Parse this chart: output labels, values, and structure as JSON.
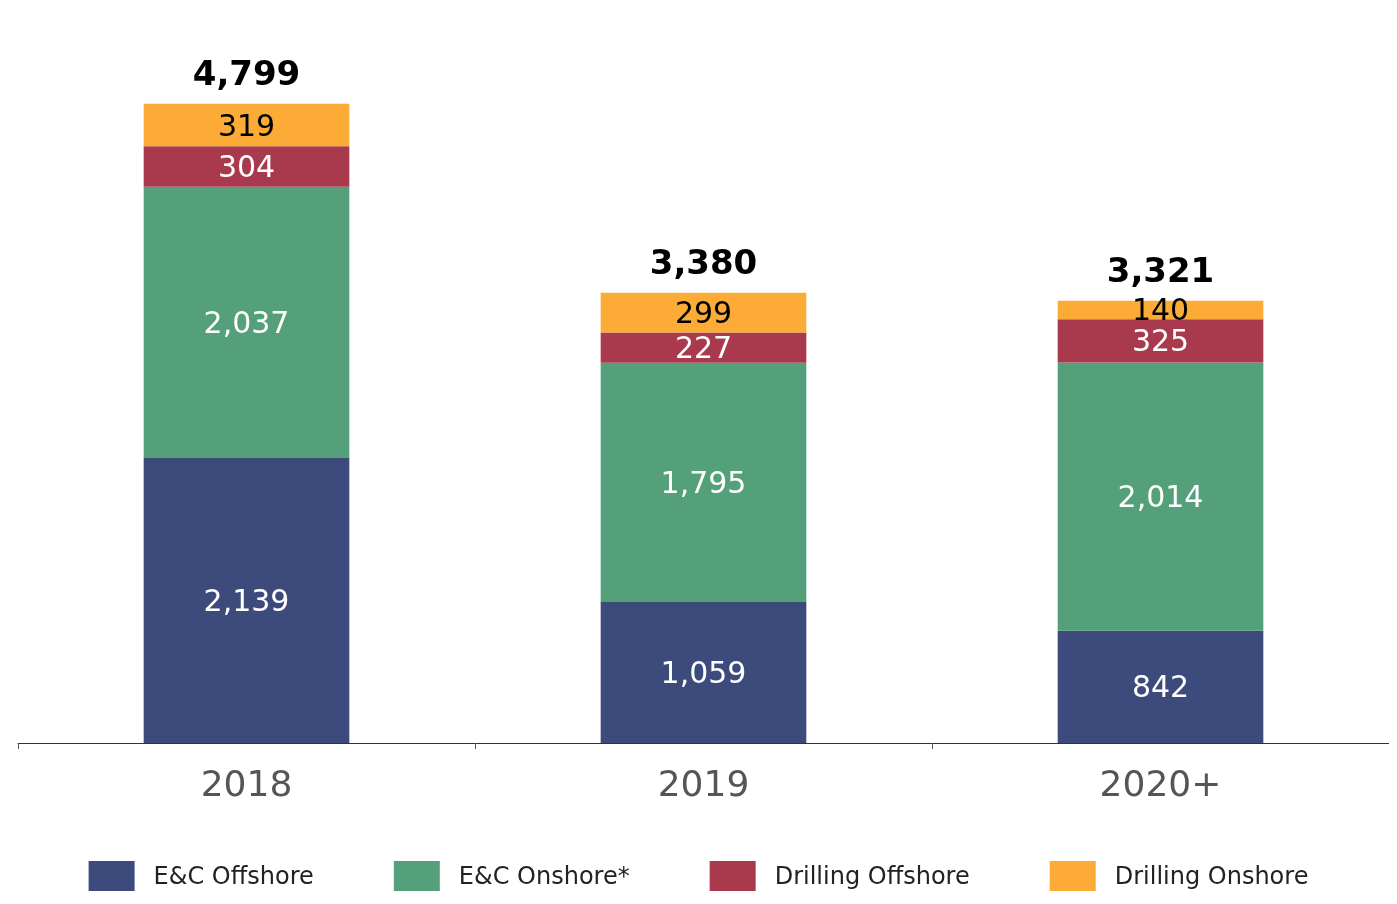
{
  "chart_data": {
    "type": "bar",
    "stacked": true,
    "categories": [
      "2018",
      "2019",
      "2020+"
    ],
    "series": [
      {
        "name": "E&C Offshore",
        "color": "#3d4a7c",
        "values": [
          2139,
          1059,
          842
        ],
        "value_labels": [
          "2,139",
          "1,059",
          "842"
        ]
      },
      {
        "name": "E&C Onshore*",
        "color": "#54a07b",
        "values": [
          2037,
          1795,
          2014
        ],
        "value_labels": [
          "2,037",
          "1,795",
          "2,014"
        ]
      },
      {
        "name": "Drilling Offshore",
        "color": "#a93a4d",
        "values": [
          304,
          227,
          325
        ],
        "value_labels": [
          "304",
          "227",
          "325"
        ]
      },
      {
        "name": "Drilling Onshore",
        "color": "#fbab36",
        "values": [
          319,
          299,
          140
        ],
        "value_labels": [
          "319",
          "299",
          "140"
        ]
      }
    ],
    "totals": [
      "4,799",
      "3,380",
      "3,321"
    ],
    "legend": "bottom",
    "grid": false
  }
}
